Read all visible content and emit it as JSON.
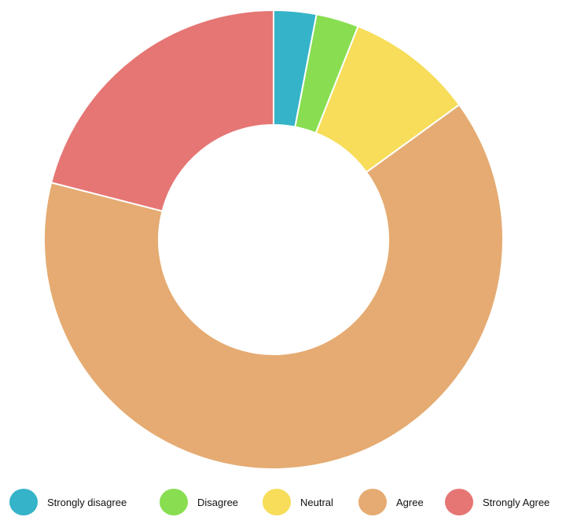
{
  "chart_data": {
    "type": "pie",
    "variant": "donut",
    "categories": [
      "Strongly disagree",
      "Disagree",
      "Neutral",
      "Agree",
      "Strongly Agree"
    ],
    "values": [
      3,
      3,
      9,
      64,
      21
    ],
    "colors": [
      "#35b3c8",
      "#88de50",
      "#f7dd5a",
      "#e5ab72",
      "#e57674"
    ],
    "legend_position": "bottom"
  }
}
